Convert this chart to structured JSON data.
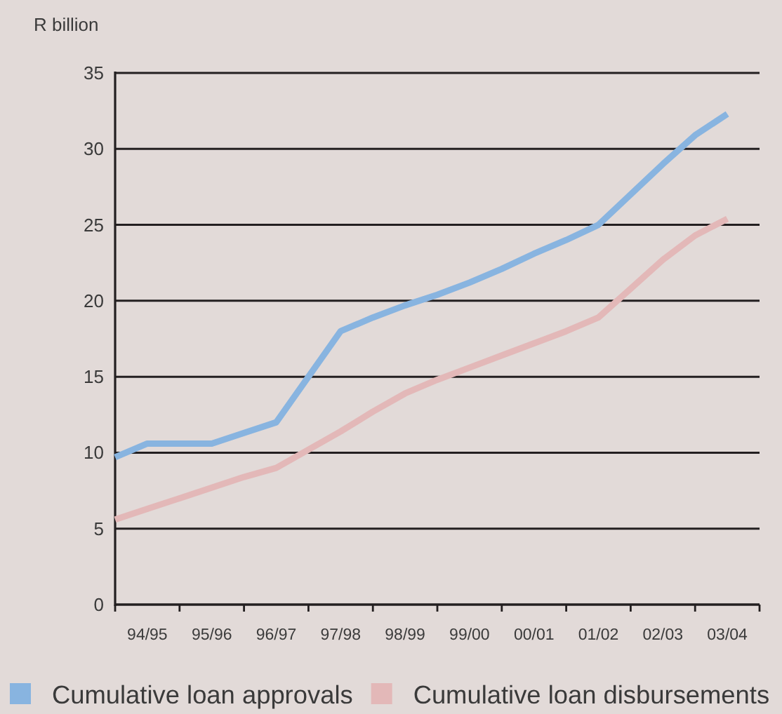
{
  "chart_data": {
    "type": "line",
    "ylabel": "R billion",
    "categories": [
      null,
      "94/95",
      null,
      "95/96",
      null,
      "96/97",
      null,
      "97/98",
      null,
      "98/99",
      null,
      "99/00",
      null,
      "00/01",
      null,
      "01/02",
      null,
      "02/03",
      null,
      "03/04",
      null
    ],
    "ylim": [
      0,
      35
    ],
    "yticks": [
      0,
      5,
      10,
      15,
      20,
      25,
      30,
      35
    ],
    "grid": "y",
    "legend": "bottom",
    "series": [
      {
        "name": "Cumulative loan approvals",
        "color": "#88b4e0",
        "values": [
          9.7,
          10.6,
          10.6,
          10.6,
          11.3,
          12.0,
          15.0,
          18.0,
          18.9,
          19.7,
          20.4,
          21.2,
          22.1,
          23.1,
          24.0,
          25.0,
          27.0,
          29.0,
          30.9,
          32.3,
          null
        ]
      },
      {
        "name": "Cumulative loan disbursements",
        "color": "#e3b8b8",
        "values": [
          5.6,
          6.3,
          7.0,
          7.7,
          8.4,
          9.0,
          10.2,
          11.4,
          12.7,
          13.9,
          14.8,
          15.6,
          16.4,
          17.2,
          18.0,
          18.9,
          20.8,
          22.7,
          24.3,
          25.4,
          null
        ]
      }
    ]
  }
}
